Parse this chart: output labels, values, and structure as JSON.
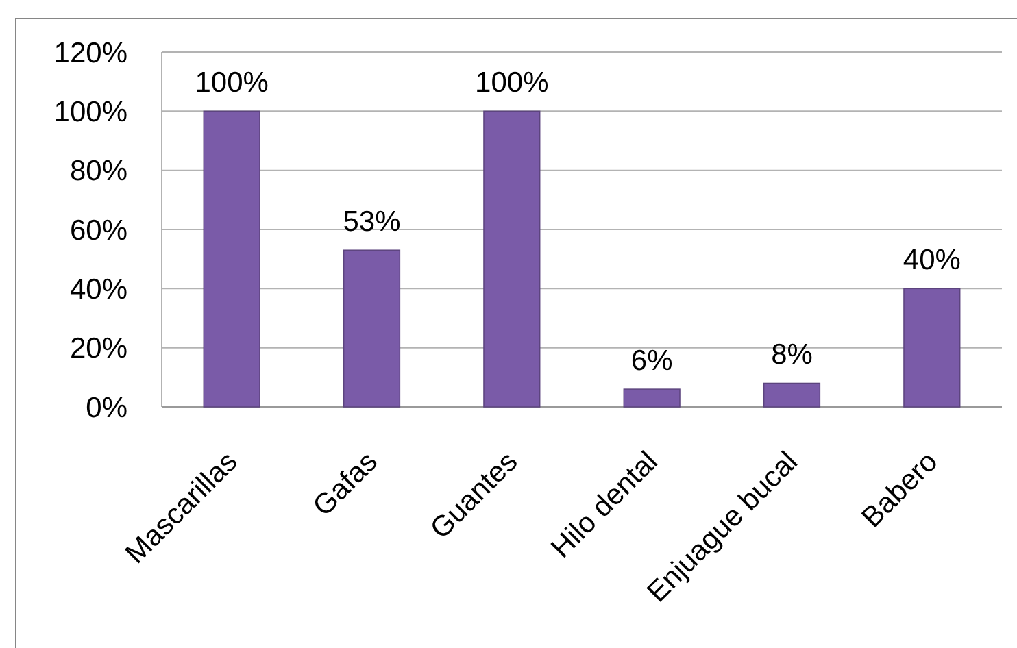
{
  "chart_data": {
    "type": "bar",
    "categories": [
      "Mascarillas",
      "Gafas",
      "Guantes",
      "Hilo dental",
      "Enjuague bucal",
      "Babero"
    ],
    "values": [
      100,
      53,
      100,
      6,
      8,
      40
    ],
    "value_labels": [
      "100%",
      "53%",
      "100%",
      "6%",
      "8%",
      "40%"
    ],
    "color": "#7a5ba8",
    "ylim": [
      0,
      120
    ],
    "yticks": [
      {
        "value": 0,
        "label": "0%"
      },
      {
        "value": 20,
        "label": "20%"
      },
      {
        "value": 40,
        "label": "40%"
      },
      {
        "value": 60,
        "label": "60%"
      },
      {
        "value": 80,
        "label": "80%"
      },
      {
        "value": 100,
        "label": "100%"
      },
      {
        "value": 120,
        "label": "120%"
      }
    ],
    "grid": "y"
  }
}
